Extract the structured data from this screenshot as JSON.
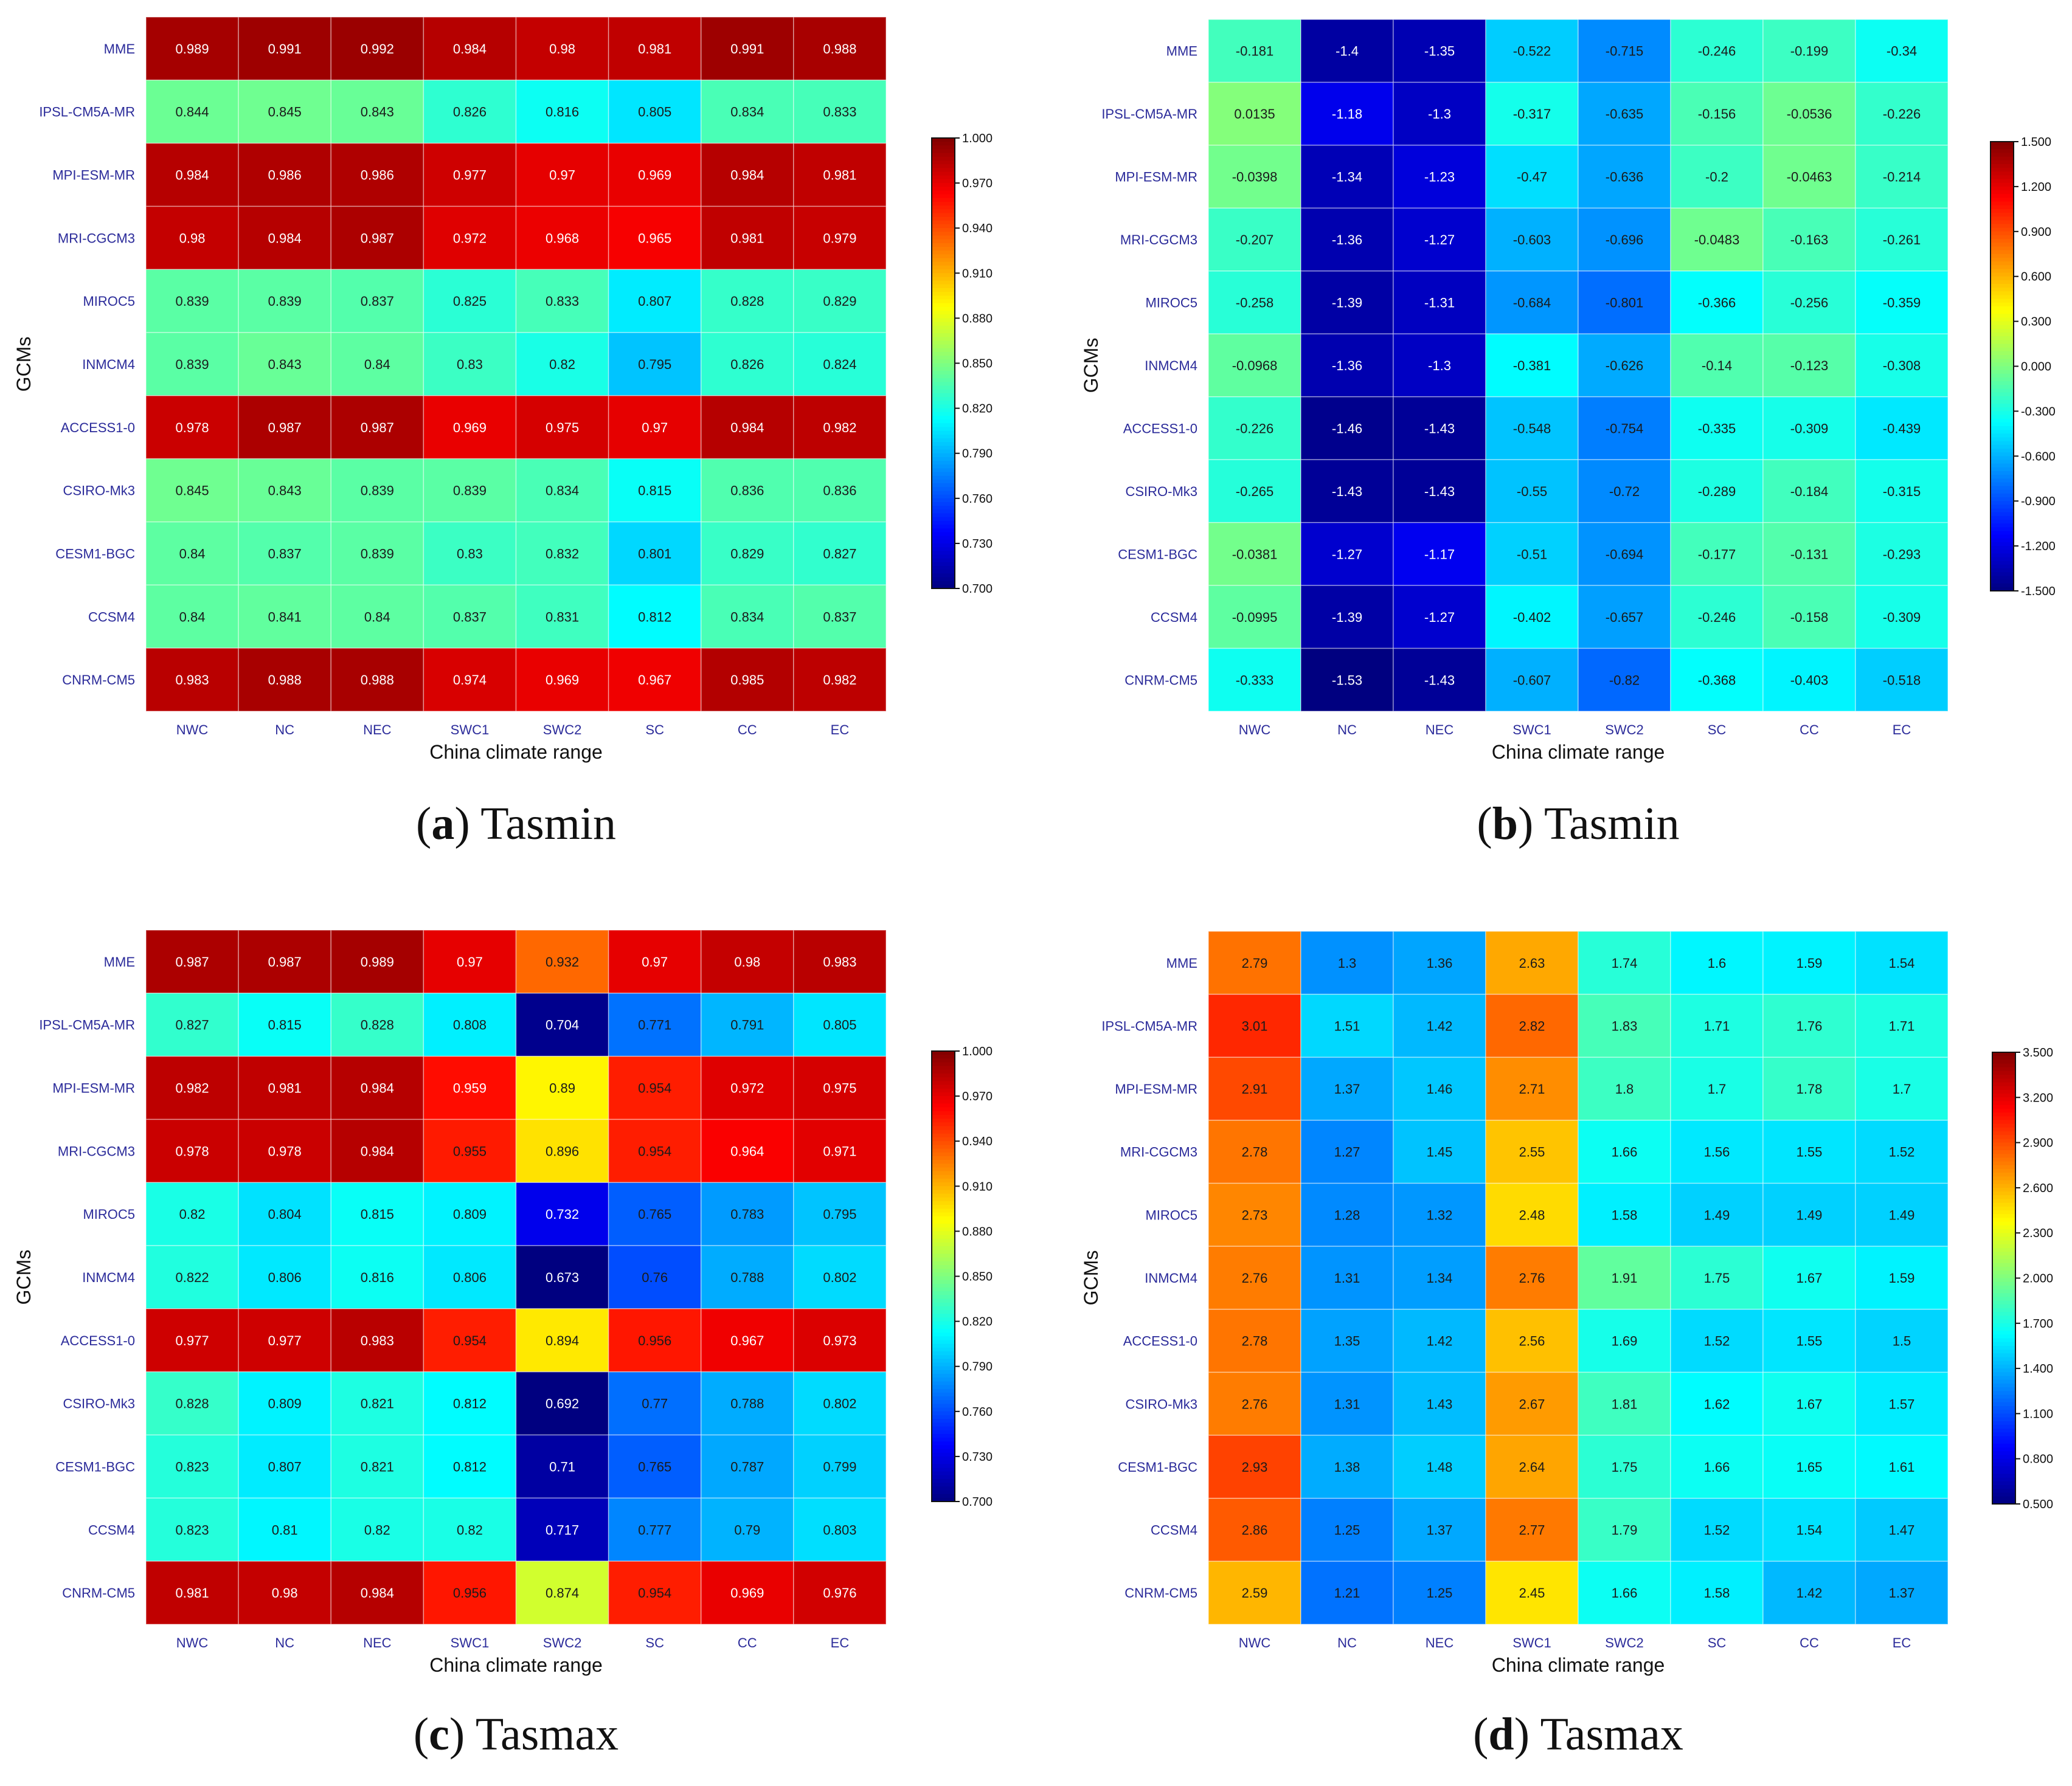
{
  "figure": {
    "gcms": [
      "MME",
      "IPSL-CM5A-MR",
      "MPI-ESM-MR",
      "MRI-CGCM3",
      "MIROC5",
      "INMCM4",
      "ACCESS1-0",
      "CSIRO-Mk3",
      "CESM1-BGC",
      "CCSM4",
      "CNRM-CM5"
    ],
    "regions": [
      "NWC",
      "NC",
      "NEC",
      "SWC1",
      "SWC2",
      "SC",
      "CC",
      "EC"
    ]
  },
  "chart_data": [
    {
      "type": "heatmap",
      "panel": "a",
      "caption_letter": "a",
      "caption_title": "Tasmin",
      "xlabel": "China climate range",
      "ylabel": "GCMs",
      "vmin": 0.7,
      "vmax": 1.0,
      "colorbar_ticks": [
        "1.000",
        "0.970",
        "0.940",
        "0.910",
        "0.880",
        "0.850",
        "0.820",
        "0.790",
        "0.760",
        "0.730",
        "0.700"
      ],
      "values": [
        [
          "0.989",
          "0.991",
          "0.992",
          "0.984",
          "0.98",
          "0.981",
          "0.991",
          "0.988"
        ],
        [
          "0.844",
          "0.845",
          "0.843",
          "0.826",
          "0.816",
          "0.805",
          "0.834",
          "0.833"
        ],
        [
          "0.984",
          "0.986",
          "0.986",
          "0.977",
          "0.97",
          "0.969",
          "0.984",
          "0.981"
        ],
        [
          "0.98",
          "0.984",
          "0.987",
          "0.972",
          "0.968",
          "0.965",
          "0.981",
          "0.979"
        ],
        [
          "0.839",
          "0.839",
          "0.837",
          "0.825",
          "0.833",
          "0.807",
          "0.828",
          "0.829"
        ],
        [
          "0.839",
          "0.843",
          "0.84",
          "0.83",
          "0.82",
          "0.795",
          "0.826",
          "0.824"
        ],
        [
          "0.978",
          "0.987",
          "0.987",
          "0.969",
          "0.975",
          "0.97",
          "0.984",
          "0.982"
        ],
        [
          "0.845",
          "0.843",
          "0.839",
          "0.839",
          "0.834",
          "0.815",
          "0.836",
          "0.836"
        ],
        [
          "0.84",
          "0.837",
          "0.839",
          "0.83",
          "0.832",
          "0.801",
          "0.829",
          "0.827"
        ],
        [
          "0.84",
          "0.841",
          "0.84",
          "0.837",
          "0.831",
          "0.812",
          "0.834",
          "0.837"
        ],
        [
          "0.983",
          "0.988",
          "0.988",
          "0.974",
          "0.969",
          "0.967",
          "0.985",
          "0.982"
        ]
      ]
    },
    {
      "type": "heatmap",
      "panel": "b",
      "caption_letter": "b",
      "caption_title": "Tasmin",
      "xlabel": "China climate range",
      "ylabel": "GCMs",
      "vmin": -1.5,
      "vmax": 1.5,
      "colorbar_ticks": [
        "1.500",
        "1.200",
        "0.900",
        "0.600",
        "0.300",
        "0.000",
        "-0.300",
        "-0.600",
        "-0.900",
        "-1.200",
        "-1.500"
      ],
      "values": [
        [
          "-0.181",
          "-1.4",
          "-1.35",
          "-0.522",
          "-0.715",
          "-0.246",
          "-0.199",
          "-0.34"
        ],
        [
          "0.0135",
          "-1.18",
          "-1.3",
          "-0.317",
          "-0.635",
          "-0.156",
          "-0.0536",
          "-0.226"
        ],
        [
          "-0.0398",
          "-1.34",
          "-1.23",
          "-0.47",
          "-0.636",
          "-0.2",
          "-0.0463",
          "-0.214"
        ],
        [
          "-0.207",
          "-1.36",
          "-1.27",
          "-0.603",
          "-0.696",
          "-0.0483",
          "-0.163",
          "-0.261"
        ],
        [
          "-0.258",
          "-1.39",
          "-1.31",
          "-0.684",
          "-0.801",
          "-0.366",
          "-0.256",
          "-0.359"
        ],
        [
          "-0.0968",
          "-1.36",
          "-1.3",
          "-0.381",
          "-0.626",
          "-0.14",
          "-0.123",
          "-0.308"
        ],
        [
          "-0.226",
          "-1.46",
          "-1.43",
          "-0.548",
          "-0.754",
          "-0.335",
          "-0.309",
          "-0.439"
        ],
        [
          "-0.265",
          "-1.43",
          "-1.43",
          "-0.55",
          "-0.72",
          "-0.289",
          "-0.184",
          "-0.315"
        ],
        [
          "-0.0381",
          "-1.27",
          "-1.17",
          "-0.51",
          "-0.694",
          "-0.177",
          "-0.131",
          "-0.293"
        ],
        [
          "-0.0995",
          "-1.39",
          "-1.27",
          "-0.402",
          "-0.657",
          "-0.246",
          "-0.158",
          "-0.309"
        ],
        [
          "-0.333",
          "-1.53",
          "-1.43",
          "-0.607",
          "-0.82",
          "-0.368",
          "-0.403",
          "-0.518"
        ]
      ]
    },
    {
      "type": "heatmap",
      "panel": "c",
      "caption_letter": "c",
      "caption_title": "Tasmax",
      "xlabel": "China climate range",
      "ylabel": "GCMs",
      "vmin": 0.7,
      "vmax": 1.0,
      "colorbar_ticks": [
        "1.000",
        "0.970",
        "0.940",
        "0.910",
        "0.880",
        "0.850",
        "0.820",
        "0.790",
        "0.760",
        "0.730",
        "0.700"
      ],
      "values": [
        [
          "0.987",
          "0.987",
          "0.989",
          "0.97",
          "0.932",
          "0.97",
          "0.98",
          "0.983"
        ],
        [
          "0.827",
          "0.815",
          "0.828",
          "0.808",
          "0.704",
          "0.771",
          "0.791",
          "0.805"
        ],
        [
          "0.982",
          "0.981",
          "0.984",
          "0.959",
          "0.89",
          "0.954",
          "0.972",
          "0.975"
        ],
        [
          "0.978",
          "0.978",
          "0.984",
          "0.955",
          "0.896",
          "0.954",
          "0.964",
          "0.971"
        ],
        [
          "0.82",
          "0.804",
          "0.815",
          "0.809",
          "0.732",
          "0.765",
          "0.783",
          "0.795"
        ],
        [
          "0.822",
          "0.806",
          "0.816",
          "0.806",
          "0.673",
          "0.76",
          "0.788",
          "0.802"
        ],
        [
          "0.977",
          "0.977",
          "0.983",
          "0.954",
          "0.894",
          "0.956",
          "0.967",
          "0.973"
        ],
        [
          "0.828",
          "0.809",
          "0.821",
          "0.812",
          "0.692",
          "0.77",
          "0.788",
          "0.802"
        ],
        [
          "0.823",
          "0.807",
          "0.821",
          "0.812",
          "0.71",
          "0.765",
          "0.787",
          "0.799"
        ],
        [
          "0.823",
          "0.81",
          "0.82",
          "0.82",
          "0.717",
          "0.777",
          "0.79",
          "0.803"
        ],
        [
          "0.981",
          "0.98",
          "0.984",
          "0.956",
          "0.874",
          "0.954",
          "0.969",
          "0.976"
        ]
      ]
    },
    {
      "type": "heatmap",
      "panel": "d",
      "caption_letter": "d",
      "caption_title": "Tasmax",
      "xlabel": "China climate range",
      "ylabel": "GCMs",
      "vmin": 0.5,
      "vmax": 3.5,
      "colorbar_ticks": [
        "3.500",
        "3.200",
        "2.900",
        "2.600",
        "2.300",
        "2.000",
        "1.700",
        "1.400",
        "1.100",
        "0.800",
        "0.500"
      ],
      "values": [
        [
          "2.79",
          "1.3",
          "1.36",
          "2.63",
          "1.74",
          "1.6",
          "1.59",
          "1.54"
        ],
        [
          "3.01",
          "1.51",
          "1.42",
          "2.82",
          "1.83",
          "1.71",
          "1.76",
          "1.71"
        ],
        [
          "2.91",
          "1.37",
          "1.46",
          "2.71",
          "1.8",
          "1.7",
          "1.78",
          "1.7"
        ],
        [
          "2.78",
          "1.27",
          "1.45",
          "2.55",
          "1.66",
          "1.56",
          "1.55",
          "1.52"
        ],
        [
          "2.73",
          "1.28",
          "1.32",
          "2.48",
          "1.58",
          "1.49",
          "1.49",
          "1.49"
        ],
        [
          "2.76",
          "1.31",
          "1.34",
          "2.76",
          "1.91",
          "1.75",
          "1.67",
          "1.59"
        ],
        [
          "2.78",
          "1.35",
          "1.42",
          "2.56",
          "1.69",
          "1.52",
          "1.55",
          "1.5"
        ],
        [
          "2.76",
          "1.31",
          "1.43",
          "2.67",
          "1.81",
          "1.62",
          "1.67",
          "1.57"
        ],
        [
          "2.93",
          "1.38",
          "1.48",
          "2.64",
          "1.75",
          "1.66",
          "1.65",
          "1.61"
        ],
        [
          "2.86",
          "1.25",
          "1.37",
          "2.77",
          "1.79",
          "1.52",
          "1.54",
          "1.47"
        ],
        [
          "2.59",
          "1.21",
          "1.25",
          "2.45",
          "1.66",
          "1.58",
          "1.42",
          "1.37"
        ]
      ]
    }
  ]
}
